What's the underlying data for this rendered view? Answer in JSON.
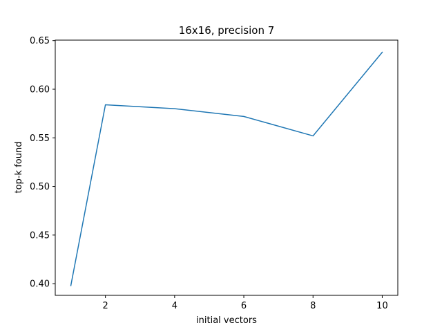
{
  "chart_data": {
    "type": "line",
    "title": "16x16, precision 7",
    "xlabel": "initial vectors",
    "ylabel": "top-k found",
    "xlim": [
      0.55,
      10.45
    ],
    "ylim": [
      0.388,
      0.6505
    ],
    "x_ticks": [
      2,
      4,
      6,
      8,
      10
    ],
    "y_ticks": [
      0.4,
      0.45,
      0.5,
      0.55,
      0.6,
      0.65
    ],
    "y_tick_labels": [
      "0.40",
      "0.45",
      "0.50",
      "0.55",
      "0.60",
      "0.65"
    ],
    "grid": false,
    "series": [
      {
        "color": "#1f77b4",
        "x": [
          1,
          2,
          4,
          6,
          8,
          10
        ],
        "y": [
          0.398,
          0.584,
          0.58,
          0.572,
          0.552,
          0.638
        ]
      }
    ]
  }
}
